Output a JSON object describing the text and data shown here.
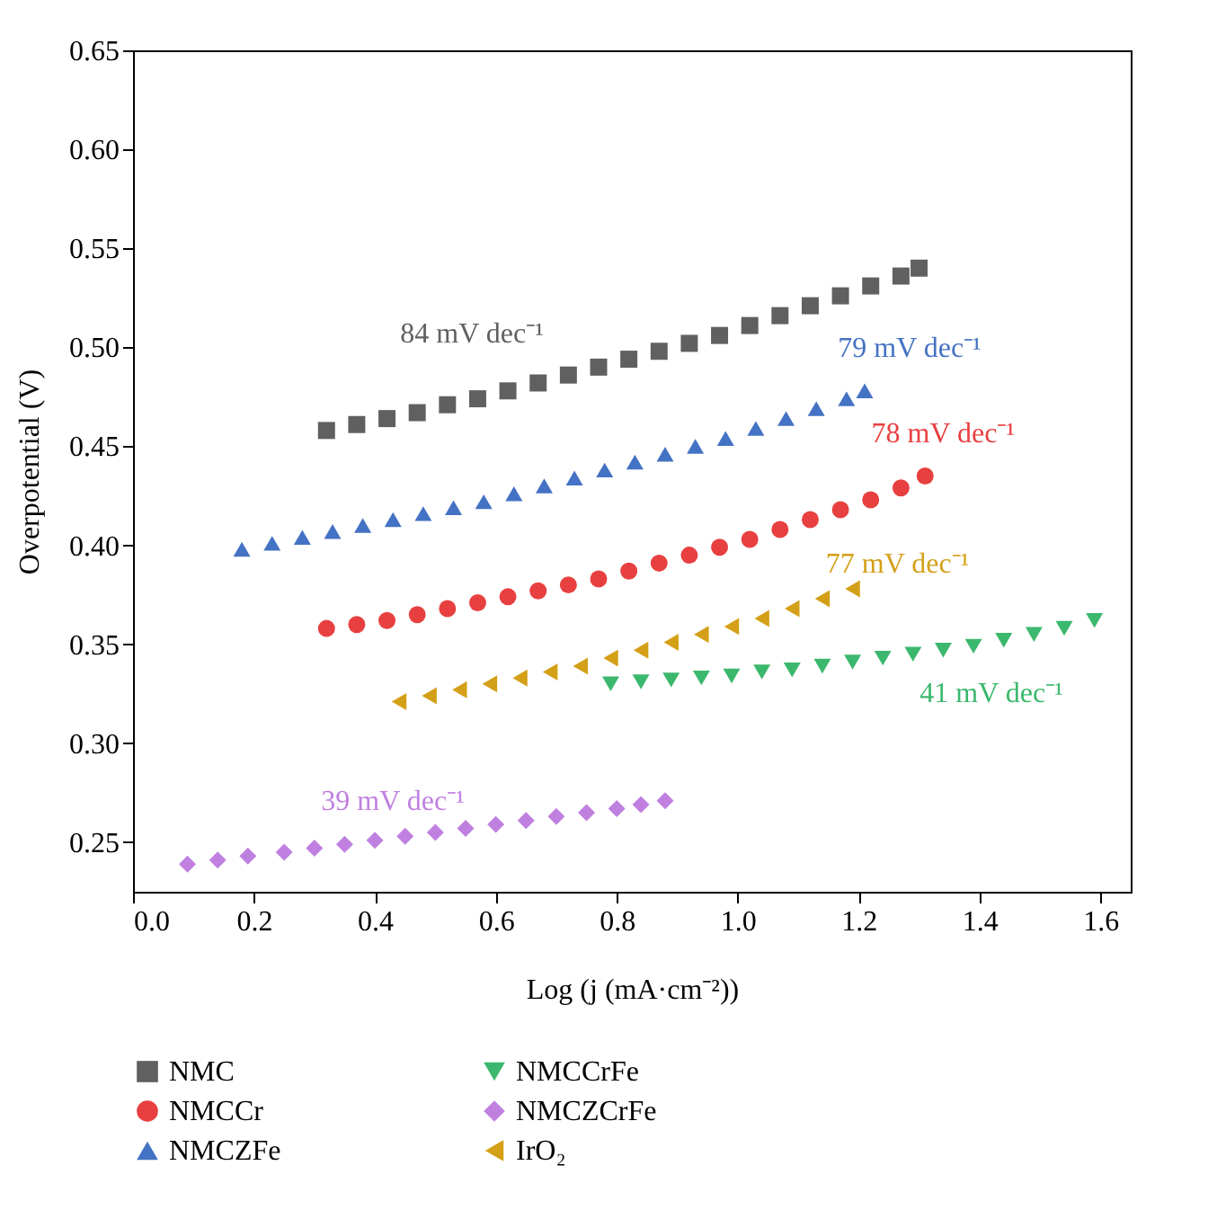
{
  "chart_data": {
    "type": "scatter",
    "xlabel": "Log (j (mA·cm⁻²))",
    "ylabel": "Overpotential (V)",
    "xlim": [
      0,
      1.65
    ],
    "xticks": [
      {
        "value": 0,
        "label": "0.0"
      },
      0.2,
      0.4,
      0.6,
      0.8,
      {
        "value": 1,
        "label": "1.0"
      },
      1.2,
      1.4,
      1.6
    ],
    "ylim": [
      0.225,
      0.65
    ],
    "yticks": [
      0.25,
      {
        "value": 0.3,
        "label": "0.30"
      },
      0.35,
      {
        "value": 0.4,
        "label": "0.40"
      },
      0.45,
      {
        "value": 0.5,
        "label": "0.50"
      },
      0.55,
      {
        "value": 0.6,
        "label": "0.60"
      },
      0.65
    ],
    "grid": false,
    "legend": "bottom",
    "series": [
      {
        "name": "NMC",
        "color": "#606060",
        "marker": "square",
        "x": [
          0.32,
          0.37,
          0.42,
          0.47,
          0.52,
          0.57,
          0.62,
          0.67,
          0.72,
          0.77,
          0.82,
          0.87,
          0.92,
          0.97,
          1.02,
          1.07,
          1.12,
          1.17,
          1.22,
          1.27,
          1.3
        ],
        "values": [
          0.458,
          0.461,
          0.464,
          0.467,
          0.471,
          0.474,
          0.478,
          0.482,
          0.486,
          0.49,
          0.494,
          0.498,
          0.502,
          0.506,
          0.511,
          0.516,
          0.521,
          0.526,
          0.531,
          0.536,
          0.54
        ]
      },
      {
        "name": "NMCCr",
        "color": "#e84040",
        "marker": "circle",
        "x": [
          0.32,
          0.37,
          0.42,
          0.47,
          0.52,
          0.57,
          0.62,
          0.67,
          0.72,
          0.77,
          0.82,
          0.87,
          0.92,
          0.97,
          1.02,
          1.07,
          1.12,
          1.17,
          1.22,
          1.27,
          1.31
        ],
        "values": [
          0.358,
          0.36,
          0.362,
          0.365,
          0.368,
          0.371,
          0.374,
          0.377,
          0.38,
          0.383,
          0.387,
          0.391,
          0.395,
          0.399,
          0.403,
          0.408,
          0.413,
          0.418,
          0.423,
          0.429,
          0.435
        ]
      },
      {
        "name": "NMCZFe",
        "color": "#4472c4",
        "marker": "triangle",
        "x": [
          0.18,
          0.23,
          0.28,
          0.33,
          0.38,
          0.43,
          0.48,
          0.53,
          0.58,
          0.63,
          0.68,
          0.73,
          0.78,
          0.83,
          0.88,
          0.93,
          0.98,
          1.03,
          1.08,
          1.13,
          1.18,
          1.21
        ],
        "values": [
          0.398,
          0.401,
          0.404,
          0.407,
          0.41,
          0.413,
          0.416,
          0.419,
          0.422,
          0.426,
          0.43,
          0.434,
          0.438,
          0.442,
          0.446,
          0.45,
          0.454,
          0.459,
          0.464,
          0.469,
          0.474,
          0.478
        ]
      },
      {
        "name": "NMCCrFe",
        "color": "#3cb86e",
        "marker": "triangle-down",
        "x": [
          0.79,
          0.84,
          0.89,
          0.94,
          0.99,
          1.04,
          1.09,
          1.14,
          1.19,
          1.24,
          1.29,
          1.34,
          1.39,
          1.44,
          1.49,
          1.54,
          1.59
        ],
        "values": [
          0.33,
          0.331,
          0.332,
          0.333,
          0.334,
          0.336,
          0.337,
          0.339,
          0.341,
          0.343,
          0.345,
          0.347,
          0.349,
          0.352,
          0.355,
          0.358,
          0.362
        ]
      },
      {
        "name": "NMCZCrFe",
        "color": "#c080e0",
        "marker": "diamond",
        "x": [
          0.09,
          0.14,
          0.19,
          0.25,
          0.3,
          0.35,
          0.4,
          0.45,
          0.5,
          0.55,
          0.6,
          0.65,
          0.7,
          0.75,
          0.8,
          0.84,
          0.88
        ],
        "values": [
          0.239,
          0.241,
          0.243,
          0.245,
          0.247,
          0.249,
          0.251,
          0.253,
          0.255,
          0.257,
          0.259,
          0.261,
          0.263,
          0.265,
          0.267,
          0.269,
          0.271
        ]
      },
      {
        "name": "IrO₂",
        "color": "#d4a017",
        "marker": "triangle-left",
        "x": [
          0.44,
          0.49,
          0.54,
          0.59,
          0.64,
          0.69,
          0.74,
          0.79,
          0.84,
          0.89,
          0.94,
          0.99,
          1.04,
          1.09,
          1.14,
          1.19
        ],
        "values": [
          0.321,
          0.324,
          0.327,
          0.33,
          0.333,
          0.336,
          0.339,
          0.343,
          0.347,
          0.351,
          0.355,
          0.359,
          0.363,
          0.368,
          0.373,
          0.378
        ]
      }
    ],
    "annotations": [
      "84 mV dec⁻¹",
      "78 mV dec⁻¹",
      "79 mV dec⁻¹",
      "41 mV dec⁻¹",
      "39 mV dec⁻¹",
      "77 mV dec⁻¹"
    ]
  }
}
